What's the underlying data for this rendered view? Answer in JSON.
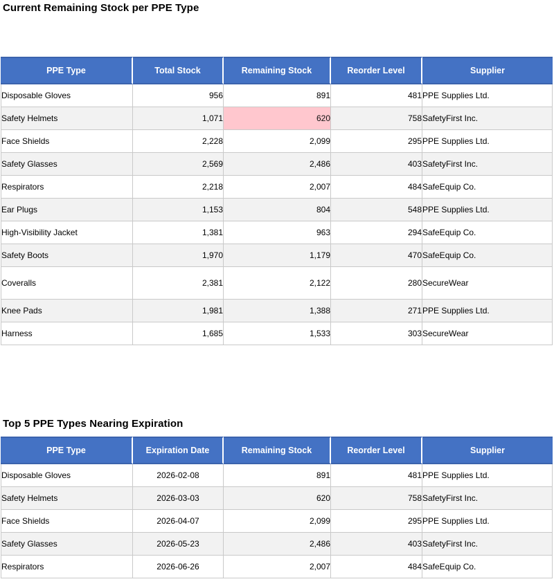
{
  "colors": {
    "header_bg": "#4472C4",
    "header_text": "#ffffff",
    "alt_row_bg": "#f2f2f2",
    "low_stock_highlight_bg": "#FFC7CE",
    "cell_border": "#c9c9c9"
  },
  "stock_section": {
    "title": "Current Remaining Stock per PPE Type",
    "columns": [
      "PPE Type",
      "Total Stock",
      "Remaining Stock",
      "Reorder Level",
      "Supplier"
    ],
    "rows": [
      {
        "ppe_type": "Disposable Gloves",
        "total_stock": "956",
        "remaining_stock": "891",
        "reorder_level": "481",
        "supplier": "PPE Supplies Ltd."
      },
      {
        "ppe_type": "Safety Helmets",
        "total_stock": "1,071",
        "remaining_stock": "620",
        "reorder_level": "758",
        "supplier": "SafetyFirst Inc."
      },
      {
        "ppe_type": "Face Shields",
        "total_stock": "2,228",
        "remaining_stock": "2,099",
        "reorder_level": "295",
        "supplier": "PPE Supplies Ltd."
      },
      {
        "ppe_type": "Safety Glasses",
        "total_stock": "2,569",
        "remaining_stock": "2,486",
        "reorder_level": "403",
        "supplier": "SafetyFirst Inc."
      },
      {
        "ppe_type": "Respirators",
        "total_stock": "2,218",
        "remaining_stock": "2,007",
        "reorder_level": "484",
        "supplier": "SafeEquip Co."
      },
      {
        "ppe_type": "Ear Plugs",
        "total_stock": "1,153",
        "remaining_stock": "804",
        "reorder_level": "548",
        "supplier": "PPE Supplies Ltd."
      },
      {
        "ppe_type": "High-Visibility Jacket",
        "total_stock": "1,381",
        "remaining_stock": "963",
        "reorder_level": "294",
        "supplier": "SafeEquip Co."
      },
      {
        "ppe_type": "Safety Boots",
        "total_stock": "1,970",
        "remaining_stock": "1,179",
        "reorder_level": "470",
        "supplier": "SafeEquip Co."
      },
      {
        "ppe_type": "Coveralls",
        "total_stock": "2,381",
        "remaining_stock": "2,122",
        "reorder_level": "280",
        "supplier": "SecureWear"
      },
      {
        "ppe_type": "Knee Pads",
        "total_stock": "1,981",
        "remaining_stock": "1,388",
        "reorder_level": "271",
        "supplier": "PPE Supplies Ltd."
      },
      {
        "ppe_type": "Harness",
        "total_stock": "1,685",
        "remaining_stock": "1,533",
        "reorder_level": "303",
        "supplier": "SecureWear"
      }
    ],
    "highlighted_cell": {
      "row": "Safety Helmets",
      "column": "Remaining Stock",
      "value": "620"
    }
  },
  "expiration_section": {
    "title": "Top 5 PPE Types Nearing Expiration",
    "columns": [
      "PPE Type",
      "Expiration Date",
      "Remaining Stock",
      "Reorder Level",
      "Supplier"
    ],
    "rows": [
      {
        "ppe_type": "Disposable Gloves",
        "expiration_date": "2026-02-08",
        "remaining_stock": "891",
        "reorder_level": "481",
        "supplier": "PPE Supplies Ltd."
      },
      {
        "ppe_type": "Safety Helmets",
        "expiration_date": "2026-03-03",
        "remaining_stock": "620",
        "reorder_level": "758",
        "supplier": "SafetyFirst Inc."
      },
      {
        "ppe_type": "Face Shields",
        "expiration_date": "2026-04-07",
        "remaining_stock": "2,099",
        "reorder_level": "295",
        "supplier": "PPE Supplies Ltd."
      },
      {
        "ppe_type": "Safety Glasses",
        "expiration_date": "2026-05-23",
        "remaining_stock": "2,486",
        "reorder_level": "403",
        "supplier": "SafetyFirst Inc."
      },
      {
        "ppe_type": "Respirators",
        "expiration_date": "2026-06-26",
        "remaining_stock": "2,007",
        "reorder_level": "484",
        "supplier": "SafeEquip Co."
      }
    ]
  }
}
